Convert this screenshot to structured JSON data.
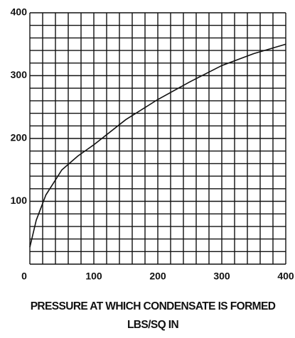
{
  "chart_data": {
    "type": "line",
    "xlabel": "PRESSURE AT WHICH CONDENSATE IS FORMED",
    "xlabel2": "LBS/SQ IN",
    "x": [
      0,
      10,
      25,
      50,
      75,
      100,
      150,
      200,
      250,
      300,
      350,
      400
    ],
    "series": [
      {
        "color": "#111111",
        "values": [
          27,
          70,
          110,
          150,
          172,
          190,
          230,
          262,
          290,
          316,
          335,
          350
        ]
      }
    ],
    "xlim": [
      0,
      400
    ],
    "ylim": [
      0,
      400
    ],
    "xticks": [
      0,
      100,
      200,
      300,
      400
    ],
    "yticks": [
      100,
      200,
      300,
      400
    ],
    "xgrid": [
      0,
      20,
      40,
      60,
      80,
      100,
      120,
      140,
      160,
      180,
      200,
      220,
      240,
      260,
      280,
      300,
      320,
      340,
      360,
      380,
      400
    ],
    "ygrid": [
      0,
      20,
      40,
      60,
      80,
      100,
      120,
      140,
      160,
      180,
      200,
      220,
      240,
      260,
      280,
      300,
      320,
      340,
      360,
      380,
      400
    ],
    "grid": true
  }
}
